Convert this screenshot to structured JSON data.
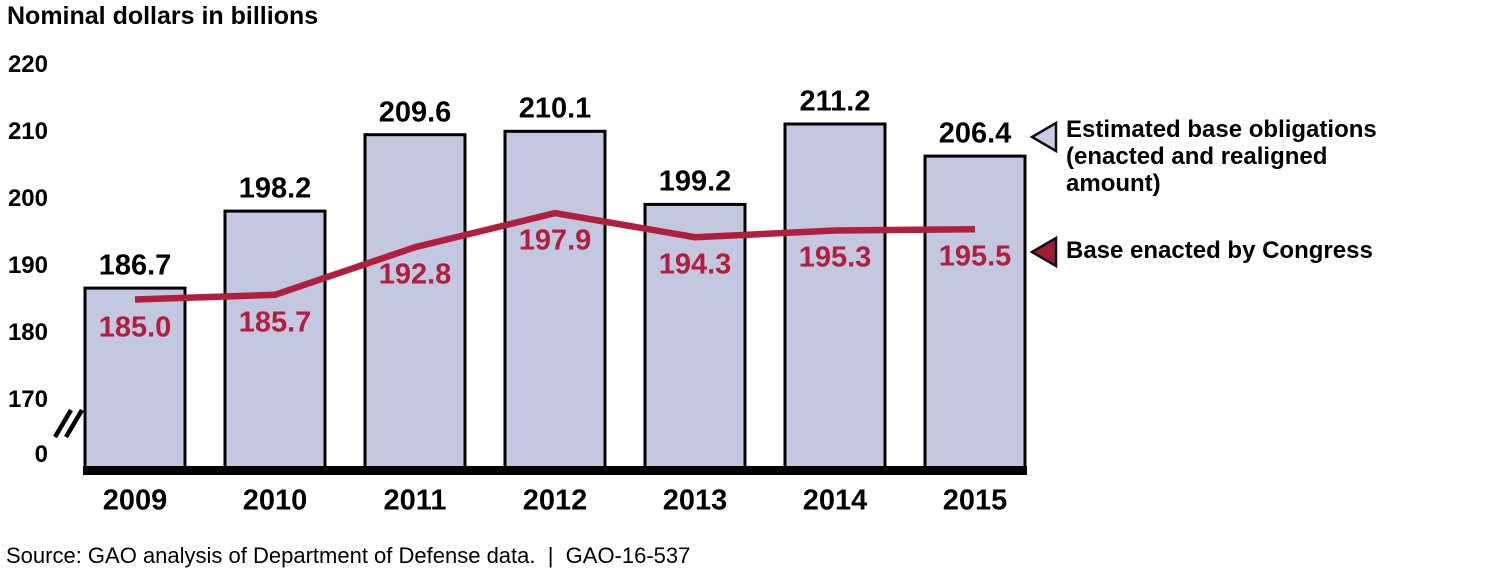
{
  "title": "Nominal dollars in billions",
  "source_note": "Source: GAO analysis of Department of Defense data.  |  GAO-16-537",
  "legend": {
    "position": "right",
    "items": [
      {
        "label": "Estimated base obligations (enacted and realigned amount)",
        "lines": [
          "Estimated base obligations",
          "(enacted and realigned",
          "amount)"
        ],
        "marker": "triangle-left-icon",
        "color": "#c7cbe5"
      },
      {
        "label": "Base enacted by Congress",
        "lines": [
          "Base enacted by Congress"
        ],
        "marker": "triangle-left-icon",
        "color": "#a01b34"
      }
    ]
  },
  "chart_data": {
    "type": "bar",
    "title": "Nominal dollars in billions",
    "categories": [
      "2009",
      "2010",
      "2011",
      "2012",
      "2013",
      "2014",
      "2015"
    ],
    "series": [
      {
        "name": "Estimated base obligations (enacted and realigned amount)",
        "type": "bar",
        "color": "#c3c7df",
        "border": "#000000",
        "values": [
          186.7,
          198.2,
          209.6,
          210.1,
          199.2,
          211.2,
          206.4
        ],
        "labels": [
          "186.7",
          "198.2",
          "209.6",
          "210.1",
          "199.2",
          "211.2",
          "206.4"
        ]
      },
      {
        "name": "Base enacted by Congress",
        "type": "line",
        "color": "#b01f3d",
        "values": [
          185.0,
          185.7,
          192.8,
          197.9,
          194.3,
          195.3,
          195.5
        ],
        "labels": [
          "185.0",
          "185.7",
          "192.8",
          "197.9",
          "194.3",
          "195.3",
          "195.5"
        ]
      }
    ],
    "xlabel": "",
    "ylabel": "Nominal dollars in billions",
    "y_ticks": [
      0,
      170,
      180,
      190,
      200,
      210,
      220
    ],
    "ylim": [
      170,
      220
    ],
    "axis_break_between": [
      0,
      170
    ],
    "grid": false,
    "legend_position": "right"
  }
}
